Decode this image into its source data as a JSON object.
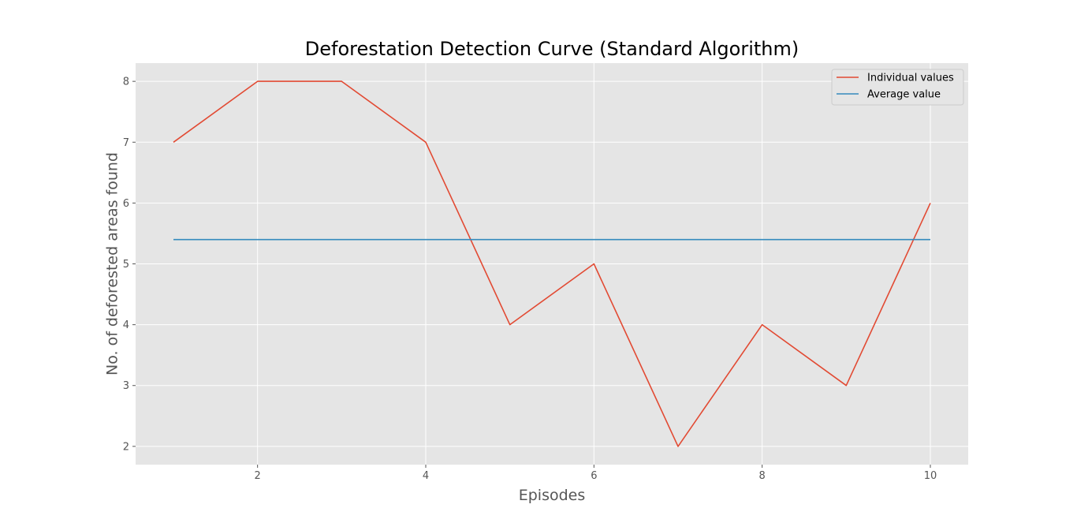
{
  "chart_data": {
    "type": "line",
    "title": "Deforestation Detection Curve (Standard Algorithm)",
    "xlabel": "Episodes",
    "ylabel": "No. of deforested areas found",
    "x": [
      1,
      2,
      3,
      4,
      5,
      6,
      7,
      8,
      9,
      10
    ],
    "series": [
      {
        "name": "Individual values",
        "values": [
          7,
          8,
          8,
          7,
          4,
          5,
          2,
          4,
          3,
          6
        ],
        "color": "#E24A33"
      },
      {
        "name": "Average value",
        "values": [
          5.4,
          5.4,
          5.4,
          5.4,
          5.4,
          5.4,
          5.4,
          5.4,
          5.4,
          5.4
        ],
        "color": "#348ABD"
      }
    ],
    "xticks": [
      2,
      4,
      6,
      8,
      10
    ],
    "yticks": [
      2,
      3,
      4,
      5,
      6,
      7,
      8
    ],
    "xlim": [
      0.55,
      10.45
    ],
    "ylim": [
      1.7,
      8.3
    ],
    "grid": true,
    "legend_position": "top-right",
    "background_color": "#E5E5E5"
  }
}
